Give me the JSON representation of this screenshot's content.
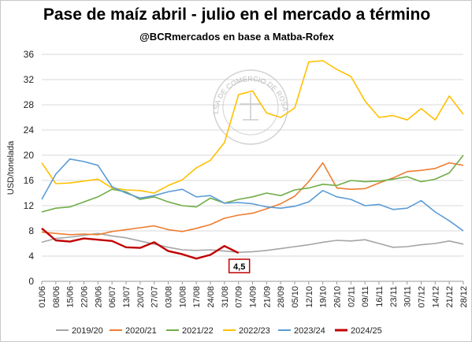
{
  "chart_data": {
    "type": "line",
    "title": "Pase de maíz abril - julio en el mercado a término",
    "subtitle": "@BCRmercados en base a Matba-Rofex",
    "ylabel": "USD/tonelada",
    "xlabel": "",
    "ylim": [
      0,
      36
    ],
    "yticks": [
      0,
      4,
      8,
      12,
      16,
      20,
      24,
      28,
      32,
      36
    ],
    "grid": true,
    "legend": "bottom",
    "x_ticks": [
      "01/06",
      "08/06",
      "15/06",
      "22/06",
      "29/06",
      "06/07",
      "13/07",
      "20/07",
      "27/07",
      "03/08",
      "10/08",
      "17/08",
      "24/08",
      "31/08",
      "07/09",
      "14/09",
      "21/09",
      "28/09",
      "05/10",
      "12/10",
      "19/10",
      "26/10",
      "02/11",
      "09/11",
      "16/11",
      "23/11",
      "30/11",
      "07/12",
      "14/12",
      "21/12",
      "28/12"
    ],
    "watermark": "BOLSA DE COMERCIO DE ROSARIO",
    "annotation": {
      "text": "4,5",
      "series": "2024/25"
    },
    "series": [
      {
        "name": "2019/20",
        "color": "#a5a5a5",
        "values": [
          6.2,
          6.8,
          7.0,
          7.3,
          7.6,
          7.2,
          6.9,
          6.4,
          5.9,
          5.4,
          5.0,
          4.9,
          5.0,
          4.8,
          4.6,
          4.7,
          4.9,
          5.2,
          5.5,
          5.8,
          6.2,
          6.5,
          6.4,
          6.6,
          6.0,
          5.4,
          5.5,
          5.8,
          6.0,
          6.4,
          5.9
        ]
      },
      {
        "name": "2020/21",
        "color": "#ed7d31",
        "values": [
          7.8,
          7.6,
          7.4,
          7.5,
          7.4,
          7.9,
          8.2,
          8.5,
          8.8,
          8.2,
          7.9,
          8.4,
          9.0,
          10.0,
          10.5,
          10.8,
          11.5,
          12.3,
          13.5,
          15.8,
          18.8,
          14.8,
          14.6,
          14.7,
          15.6,
          16.4,
          17.4,
          17.6,
          17.9,
          18.8,
          18.4
        ]
      },
      {
        "name": "2021/22",
        "color": "#70ad47",
        "values": [
          11.0,
          11.6,
          11.8,
          12.6,
          13.4,
          14.6,
          14.2,
          13.0,
          13.4,
          12.6,
          12.0,
          11.8,
          13.2,
          12.4,
          13.0,
          13.4,
          14.0,
          13.6,
          14.5,
          14.8,
          15.4,
          15.2,
          16.0,
          15.8,
          15.9,
          16.2,
          16.6,
          15.8,
          16.2,
          17.2,
          20.0
        ]
      },
      {
        "name": "2022/23",
        "color": "#ffc000",
        "values": [
          18.8,
          15.5,
          15.6,
          15.9,
          16.2,
          14.8,
          14.5,
          14.4,
          14.0,
          15.2,
          16.1,
          18.0,
          19.2,
          22.0,
          29.6,
          30.2,
          26.7,
          26.0,
          27.5,
          34.8,
          35.0,
          33.6,
          32.5,
          28.6,
          26.0,
          26.3,
          25.6,
          27.4,
          25.6,
          29.4,
          26.5
        ]
      },
      {
        "name": "2023/24",
        "color": "#5b9bd5",
        "values": [
          13.0,
          17.0,
          19.4,
          19.0,
          18.4,
          15.0,
          14.0,
          13.2,
          13.6,
          14.2,
          14.6,
          13.4,
          13.6,
          12.4,
          12.5,
          12.3,
          11.8,
          11.6,
          11.9,
          12.6,
          14.4,
          13.4,
          13.0,
          12.0,
          12.2,
          11.4,
          11.6,
          12.8,
          11.0,
          9.6,
          8.0
        ]
      },
      {
        "name": "2024/25",
        "color": "#c00000",
        "values": [
          8.4,
          6.5,
          6.3,
          6.8,
          6.6,
          6.4,
          5.4,
          5.3,
          6.2,
          4.8,
          4.3,
          3.6,
          4.2,
          5.6,
          4.5,
          null,
          null,
          null,
          null,
          null,
          null,
          null,
          null,
          null,
          null,
          null,
          null,
          null,
          null,
          null,
          null
        ]
      }
    ]
  }
}
